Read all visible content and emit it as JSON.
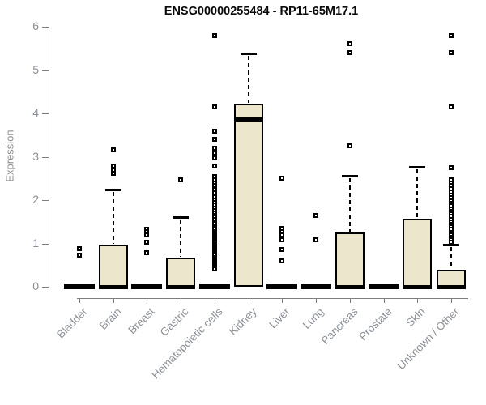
{
  "chart_data": {
    "type": "boxplot",
    "title": "ENSG00000255484 - RP11-65M17.1",
    "xlabel": "",
    "ylabel": "Expression",
    "ylim": [
      0,
      6
    ],
    "yticks": [
      0,
      1,
      2,
      3,
      4,
      5,
      6
    ],
    "grid": false,
    "legend": "none",
    "categories": [
      "Bladder",
      "Brain",
      "Breast",
      "Gastric",
      "Hematopoietic cells",
      "Kidney",
      "Liver",
      "Lung",
      "Pancreas",
      "Prostate",
      "Skin",
      "Unknown / Other"
    ],
    "series": [
      {
        "name": "Bladder",
        "q1": 0,
        "median": 0,
        "q3": 0,
        "whisker_low": 0,
        "whisker_high": 0,
        "outliers": [
          0.88,
          0.73
        ]
      },
      {
        "name": "Brain",
        "q1": 0,
        "median": 0,
        "q3": 0.98,
        "whisker_low": 0,
        "whisker_high": 2.25,
        "outliers": [
          3.15,
          2.78,
          2.7,
          2.62
        ]
      },
      {
        "name": "Breast",
        "q1": 0,
        "median": 0,
        "q3": 0,
        "whisker_low": 0,
        "whisker_high": 0,
        "outliers": [
          1.33,
          1.27,
          1.2,
          1.03,
          0.79
        ]
      },
      {
        "name": "Gastric",
        "q1": 0,
        "median": 0,
        "q3": 0.68,
        "whisker_low": 0,
        "whisker_high": 1.6,
        "outliers": [
          2.47
        ]
      },
      {
        "name": "Hematopoietic cells",
        "q1": 0,
        "median": 0,
        "q3": 0,
        "whisker_low": 0,
        "whisker_high": 0,
        "outliers": [
          5.8,
          4.15,
          3.58,
          3.4,
          3.2,
          3.08,
          2.97,
          2.79,
          2.55,
          2.47,
          2.4,
          2.33,
          2.24,
          2.16,
          2.08,
          2.0,
          1.94,
          1.88,
          1.82,
          1.76,
          1.7,
          1.65,
          1.6,
          1.55,
          1.5,
          1.45,
          1.4,
          1.36,
          1.32,
          1.28,
          1.24,
          1.2,
          1.16,
          1.12,
          1.08,
          1.04,
          1.0,
          0.96,
          0.92,
          0.88,
          0.84,
          0.8,
          0.76,
          0.72,
          0.68,
          0.64,
          0.6,
          0.56,
          0.52,
          0.48,
          0.44,
          0.41
        ]
      },
      {
        "name": "Kidney",
        "q1": 0,
        "median": 3.87,
        "q3": 4.22,
        "whisker_low": 0,
        "whisker_high": 5.38,
        "outliers": []
      },
      {
        "name": "Liver",
        "q1": 0,
        "median": 0,
        "q3": 0,
        "whisker_low": 0,
        "whisker_high": 0,
        "outliers": [
          2.5,
          1.35,
          1.28,
          1.2,
          1.08,
          0.86,
          0.6
        ]
      },
      {
        "name": "Lung",
        "q1": 0,
        "median": 0,
        "q3": 0,
        "whisker_low": 0,
        "whisker_high": 0,
        "outliers": [
          1.65,
          1.08
        ]
      },
      {
        "name": "Pancreas",
        "q1": 0,
        "median": 0,
        "q3": 1.25,
        "whisker_low": 0,
        "whisker_high": 2.57,
        "outliers": [
          5.6,
          5.4,
          3.25
        ]
      },
      {
        "name": "Prostate",
        "q1": 0,
        "median": 0,
        "q3": 0,
        "whisker_low": 0,
        "whisker_high": 0,
        "outliers": []
      },
      {
        "name": "Skin",
        "q1": 0,
        "median": 0,
        "q3": 1.57,
        "whisker_low": 0,
        "whisker_high": 2.76,
        "outliers": []
      },
      {
        "name": "Unknown / Other",
        "q1": 0,
        "median": 0,
        "q3": 0.4,
        "whisker_low": 0,
        "whisker_high": 0.97,
        "outliers": [
          5.8,
          5.4,
          4.15,
          2.75,
          2.47,
          2.4,
          2.33,
          2.26,
          2.19,
          2.12,
          2.05,
          1.98,
          1.92,
          1.86,
          1.8,
          1.74,
          1.68,
          1.62,
          1.56,
          1.5,
          1.44,
          1.38,
          1.32,
          1.26,
          1.2,
          1.14,
          1.08,
          1.02
        ]
      }
    ],
    "colors": {
      "box_fill": "#ece7cc",
      "box_border": "#000000",
      "median": "#000000",
      "whisker": "#000000",
      "outlier": "#000000",
      "axis": "#7f7f7f",
      "tick_label": "#8b9097",
      "axis_title": "#8f8f8f",
      "title": "#0a0a0a",
      "background": "#ffffff"
    }
  }
}
